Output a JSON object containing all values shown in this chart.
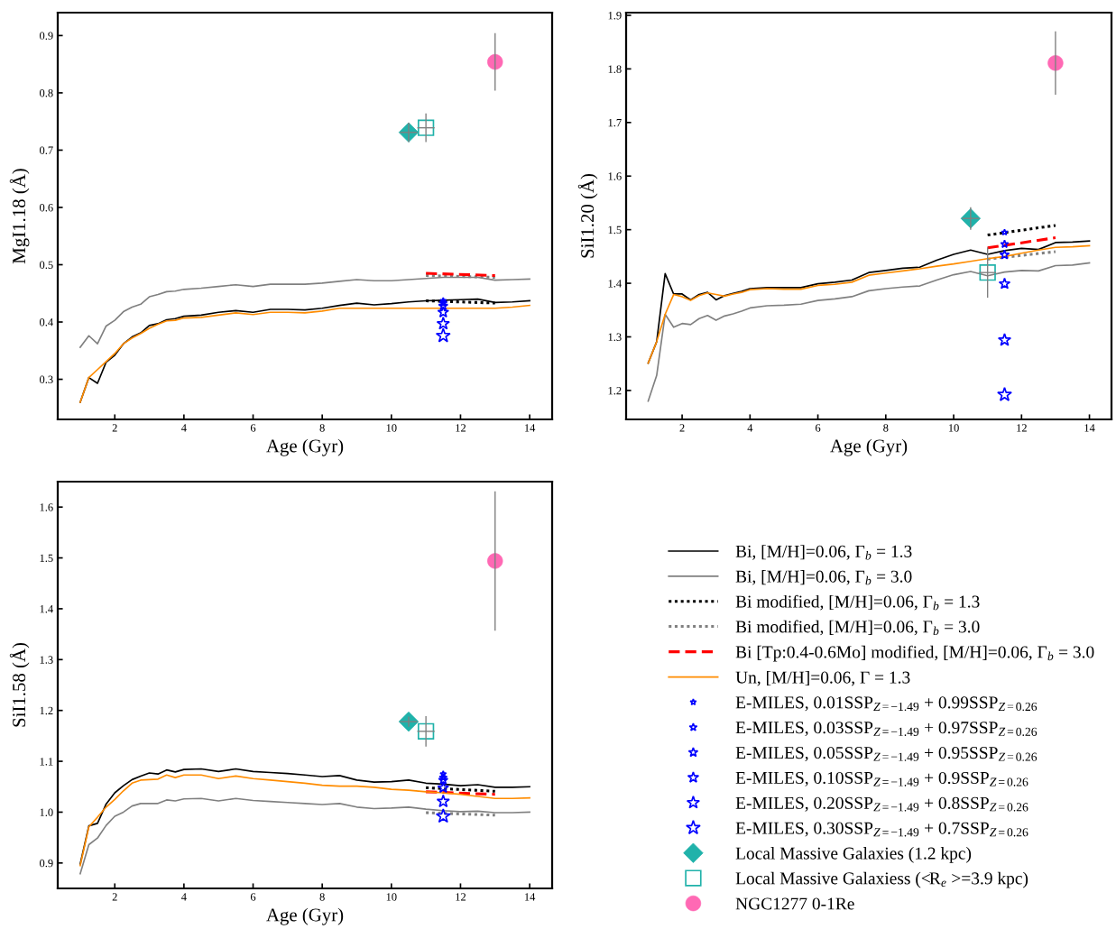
{
  "chart_data": [
    {
      "type": "line",
      "xlabel": "Age (Gyr)",
      "ylabel": "MgI1.18 (Å)",
      "xlim": [
        0.35,
        14.65
      ],
      "ylim": [
        0.23,
        0.94
      ],
      "xticks": [
        2,
        4,
        6,
        8,
        10,
        12,
        14
      ],
      "yticks": [
        0.3,
        0.4,
        0.5,
        0.6,
        0.7,
        0.8,
        0.9
      ],
      "legend": "bottom right",
      "x": [
        1,
        1.25,
        1.5,
        1.75,
        2,
        2.25,
        2.5,
        2.75,
        3,
        3.25,
        3.5,
        3.75,
        4,
        4.5,
        5,
        5.5,
        6,
        6.5,
        7,
        7.5,
        8,
        8.5,
        9,
        9.5,
        10,
        10.5,
        11,
        11.5,
        12,
        12.5,
        13,
        13.5,
        14
      ],
      "series": [
        {
          "name": "Bi, [M/H]=0.06, Γ$_{b}$ = 1.3",
          "color": "#000000",
          "line_style": "solid",
          "values": [
            0.26,
            0.303,
            0.293,
            0.33,
            0.342,
            0.362,
            0.374,
            0.381,
            0.394,
            0.397,
            0.404,
            0.406,
            0.41,
            0.412,
            0.417,
            0.42,
            0.417,
            0.422,
            0.422,
            0.421,
            0.424,
            0.429,
            0.433,
            0.43,
            0.432,
            0.435,
            0.437,
            0.438,
            0.439,
            0.44,
            0.434,
            0.435,
            0.437
          ]
        },
        {
          "name": "Bi, [M/H]=0.06, Γ$_{b}$ = 3.0",
          "color": "#808080",
          "line_style": "solid",
          "values": [
            0.356,
            0.376,
            0.362,
            0.393,
            0.403,
            0.418,
            0.426,
            0.431,
            0.444,
            0.448,
            0.453,
            0.454,
            0.457,
            0.459,
            0.462,
            0.465,
            0.462,
            0.466,
            0.466,
            0.466,
            0.468,
            0.471,
            0.474,
            0.472,
            0.472,
            0.474,
            0.476,
            0.478,
            0.478,
            0.478,
            0.473,
            0.474,
            0.475
          ]
        },
        {
          "name": "Bi modified, [M/H]=0.06, Γ$_{b}$ = 1.3",
          "color": "#000000",
          "line_style": "dotted",
          "x": [
            11,
            13
          ],
          "values": [
            0.437,
            0.433
          ]
        },
        {
          "name": "Bi modified, [M/H]=0.06, Γ$_{b}$ = 3.0",
          "color": "#808080",
          "line_style": "dotted",
          "x": [
            11,
            13
          ],
          "values": [
            0.481,
            0.478
          ]
        },
        {
          "name": "Bi [Tp:0.4-0.6Mo] modified, [M/H]=0.06, Γ$_{b}$ = 3.0",
          "color": "#ff0000",
          "line_style": "dashed",
          "x": [
            11,
            13
          ],
          "values": [
            0.485,
            0.481
          ]
        },
        {
          "name": "Un, [M/H]=0.06, Γ = 1.3",
          "color": "#ff8c00",
          "line_style": "solid",
          "values": [
            0.26,
            0.303,
            0.317,
            0.331,
            0.345,
            0.362,
            0.372,
            0.38,
            0.389,
            0.396,
            0.402,
            0.403,
            0.407,
            0.408,
            0.412,
            0.416,
            0.413,
            0.417,
            0.417,
            0.416,
            0.419,
            0.424,
            0.424,
            0.424,
            0.424,
            0.424,
            0.424,
            0.424,
            0.424,
            0.424,
            0.424,
            0.426,
            0.429
          ]
        },
        {
          "name": "E-MILES, 0.01SSP$_{Z=−1.49}$ + 0.99SSP$_{Z=0.26}$",
          "type": "scatter",
          "marker": "star",
          "color": "#0000ff",
          "x": [
            11.5
          ],
          "values": [
            0.437
          ]
        },
        {
          "name": "E-MILES, 0.03SSP$_{Z=−1.49}$ + 0.97SSP$_{Z=0.26}$",
          "type": "scatter",
          "marker": "star",
          "color": "#0000ff",
          "x": [
            11.5
          ],
          "values": [
            0.433
          ]
        },
        {
          "name": "E-MILES, 0.05SSP$_{Z=−1.49}$ + 0.95SSP$_{Z=0.26}$",
          "type": "scatter",
          "marker": "star",
          "color": "#0000ff",
          "x": [
            11.5
          ],
          "values": [
            0.428
          ]
        },
        {
          "name": "E-MILES, 0.10SSP$_{Z=−1.49}$ + 0.9SSP$_{Z=0.26}$",
          "type": "scatter",
          "marker": "star",
          "color": "#0000ff",
          "x": [
            11.5
          ],
          "values": [
            0.417
          ]
        },
        {
          "name": "E-MILES, 0.20SSP$_{Z=−1.49}$ + 0.8SSP$_{Z=0.26}$",
          "type": "scatter",
          "marker": "star",
          "color": "#0000ff",
          "x": [
            11.5
          ],
          "values": [
            0.397
          ]
        },
        {
          "name": "E-MILES, 0.30SSP$_{Z=−1.49}$ + 0.7SSP$_{Z=0.26}$",
          "type": "scatter",
          "marker": "star",
          "color": "#0000ff",
          "x": [
            11.5
          ],
          "values": [
            0.376
          ]
        },
        {
          "name": "Local Massive Galaxies (1.2 kpc)",
          "type": "scatter",
          "marker": "diamond",
          "color": "#20b2aa",
          "x": [
            10.5
          ],
          "values": [
            0.731
          ],
          "errors": [
            0.017
          ],
          "xerrors": [
            0.25
          ]
        },
        {
          "name": "Local Massive Galaxiess (<R$_{e}$ >=3.9 kpc)",
          "type": "scatter",
          "marker": "square",
          "color": "#20b2aa",
          "x": [
            11
          ],
          "values": [
            0.739
          ],
          "errors": [
            0.025
          ],
          "xerrors": [
            0.25
          ]
        },
        {
          "name": "NGC1277 0-1Re",
          "type": "scatter",
          "marker": "circle",
          "color": "#ff69b4",
          "x": [
            13
          ],
          "values": [
            0.854
          ],
          "errors": [
            0.05
          ]
        }
      ]
    },
    {
      "type": "line",
      "xlabel": "Age (Gyr)",
      "ylabel": "SiI1.20 (Å)",
      "xlim": [
        0.35,
        14.65
      ],
      "ylim": [
        1.146,
        1.905
      ],
      "xticks": [
        2,
        4,
        6,
        8,
        10,
        12,
        14
      ],
      "yticks": [
        1.2,
        1.3,
        1.4,
        1.5,
        1.6,
        1.7,
        1.8,
        1.9
      ],
      "x": [
        1,
        1.25,
        1.5,
        1.75,
        2,
        2.25,
        2.5,
        2.75,
        3,
        3.25,
        3.5,
        3.75,
        4,
        4.5,
        5,
        5.5,
        6,
        6.5,
        7,
        7.5,
        8,
        8.5,
        9,
        9.5,
        10,
        10.5,
        11,
        11.5,
        12,
        12.5,
        13,
        13.5,
        14
      ],
      "series": [
        {
          "color": "#000000",
          "line_style": "solid",
          "values": [
            1.251,
            1.291,
            1.418,
            1.38,
            1.38,
            1.369,
            1.379,
            1.383,
            1.369,
            1.377,
            1.381,
            1.385,
            1.39,
            1.392,
            1.392,
            1.392,
            1.399,
            1.402,
            1.406,
            1.42,
            1.424,
            1.428,
            1.43,
            1.443,
            1.454,
            1.462,
            1.454,
            1.461,
            1.465,
            1.463,
            1.476,
            1.477,
            1.479
          ]
        },
        {
          "color": "#808080",
          "line_style": "solid",
          "values": [
            1.18,
            1.228,
            1.342,
            1.318,
            1.325,
            1.323,
            1.334,
            1.34,
            1.331,
            1.339,
            1.343,
            1.348,
            1.354,
            1.358,
            1.359,
            1.361,
            1.368,
            1.371,
            1.375,
            1.386,
            1.39,
            1.393,
            1.395,
            1.406,
            1.416,
            1.422,
            1.414,
            1.421,
            1.424,
            1.423,
            1.433,
            1.434,
            1.438
          ]
        },
        {
          "color": "#000000",
          "line_style": "dotted",
          "x": [
            11,
            13
          ],
          "values": [
            1.49,
            1.508
          ]
        },
        {
          "color": "#808080",
          "line_style": "dotted",
          "x": [
            11,
            13
          ],
          "values": [
            1.445,
            1.459
          ]
        },
        {
          "color": "#ff0000",
          "line_style": "dashed",
          "x": [
            11,
            13
          ],
          "values": [
            1.466,
            1.485
          ]
        },
        {
          "color": "#ff8c00",
          "line_style": "solid",
          "values": [
            1.251,
            1.291,
            1.342,
            1.379,
            1.375,
            1.368,
            1.377,
            1.382,
            1.379,
            1.376,
            1.38,
            1.383,
            1.388,
            1.39,
            1.389,
            1.389,
            1.396,
            1.398,
            1.402,
            1.415,
            1.419,
            1.423,
            1.427,
            1.432,
            1.436,
            1.441,
            1.446,
            1.45,
            1.456,
            1.462,
            1.467,
            1.468,
            1.47
          ]
        },
        {
          "type": "scatter",
          "marker": "star",
          "color": "#0000ff",
          "x": [
            11.5
          ],
          "values": [
            1.495
          ]
        },
        {
          "type": "scatter",
          "marker": "star",
          "color": "#0000ff",
          "x": [
            11.5
          ],
          "values": [
            1.473
          ]
        },
        {
          "type": "scatter",
          "marker": "star",
          "color": "#0000ff",
          "x": [
            11.5
          ],
          "values": [
            1.453
          ]
        },
        {
          "type": "scatter",
          "marker": "star",
          "color": "#0000ff",
          "x": [
            11.5
          ],
          "values": [
            1.399
          ]
        },
        {
          "type": "scatter",
          "marker": "star",
          "color": "#0000ff",
          "x": [
            11.5
          ],
          "values": [
            1.294
          ]
        },
        {
          "type": "scatter",
          "marker": "star",
          "color": "#0000ff",
          "x": [
            11.5
          ],
          "values": [
            1.192
          ]
        },
        {
          "type": "scatter",
          "marker": "diamond",
          "color": "#20b2aa",
          "x": [
            10.5
          ],
          "values": [
            1.521
          ],
          "errors": [
            0.021
          ],
          "xerrors": [
            0.25
          ]
        },
        {
          "type": "scatter",
          "marker": "square",
          "color": "#20b2aa",
          "x": [
            11
          ],
          "values": [
            1.42
          ],
          "errors": [
            0.047
          ],
          "xerrors": [
            0.25
          ]
        },
        {
          "type": "scatter",
          "marker": "circle",
          "color": "#ff69b4",
          "x": [
            13
          ],
          "values": [
            1.811
          ],
          "errors": [
            0.059
          ]
        }
      ]
    },
    {
      "type": "line",
      "xlabel": "Age (Gyr)",
      "ylabel": "SiI1.58 (Å)",
      "xlim": [
        0.35,
        14.65
      ],
      "ylim": [
        0.85,
        1.65
      ],
      "xticks": [
        2,
        4,
        6,
        8,
        10,
        12,
        14
      ],
      "yticks": [
        0.9,
        {
          "value": 1.0,
          "label": "1.0"
        },
        1.1,
        1.2,
        1.3,
        1.4,
        1.5,
        1.6
      ],
      "x": [
        1,
        1.25,
        1.5,
        1.75,
        2,
        2.25,
        2.5,
        2.75,
        3,
        3.25,
        3.5,
        3.75,
        4,
        4.5,
        5,
        5.5,
        6,
        6.5,
        7,
        7.5,
        8,
        8.5,
        9,
        9.5,
        10,
        10.5,
        11,
        11.5,
        12,
        12.5,
        13,
        13.5,
        14
      ],
      "series": [
        {
          "color": "#000000",
          "line_style": "solid",
          "values": [
            0.898,
            0.973,
            0.978,
            1.016,
            1.038,
            1.052,
            1.064,
            1.071,
            1.077,
            1.075,
            1.083,
            1.079,
            1.084,
            1.085,
            1.08,
            1.085,
            1.08,
            1.078,
            1.076,
            1.073,
            1.07,
            1.072,
            1.063,
            1.059,
            1.06,
            1.063,
            1.057,
            1.055,
            1.052,
            1.054,
            1.049,
            1.049,
            1.05
          ]
        },
        {
          "color": "#808080",
          "line_style": "solid",
          "values": [
            0.879,
            0.936,
            0.949,
            0.974,
            0.992,
            1.0,
            1.012,
            1.017,
            1.017,
            1.017,
            1.024,
            1.022,
            1.026,
            1.027,
            1.022,
            1.027,
            1.023,
            1.021,
            1.019,
            1.017,
            1.015,
            1.017,
            1.01,
            1.007,
            1.008,
            1.01,
            1.006,
            1.003,
            1.001,
            1.002,
            0.999,
            0.999,
            1.0
          ]
        },
        {
          "color": "#000000",
          "line_style": "dotted",
          "x": [
            11,
            13
          ],
          "values": [
            1.048,
            1.041
          ]
        },
        {
          "color": "#808080",
          "line_style": "dotted",
          "x": [
            11,
            13
          ],
          "values": [
            0.999,
            0.994
          ]
        },
        {
          "color": "#ff0000",
          "line_style": "dashed",
          "x": [
            11,
            13
          ],
          "values": [
            1.04,
            1.035
          ]
        },
        {
          "color": "#ff8c00",
          "line_style": "solid",
          "values": [
            0.895,
            0.971,
            0.99,
            1.01,
            1.025,
            1.042,
            1.057,
            1.063,
            1.064,
            1.065,
            1.073,
            1.068,
            1.073,
            1.073,
            1.066,
            1.071,
            1.066,
            1.063,
            1.06,
            1.057,
            1.053,
            1.051,
            1.051,
            1.049,
            1.045,
            1.043,
            1.04,
            1.038,
            1.035,
            1.031,
            1.027,
            1.027,
            1.028
          ]
        },
        {
          "type": "scatter",
          "marker": "star",
          "color": "#0000ff",
          "x": [
            11.5
          ],
          "values": [
            1.075
          ]
        },
        {
          "type": "scatter",
          "marker": "star",
          "color": "#0000ff",
          "x": [
            11.5
          ],
          "values": [
            1.068
          ]
        },
        {
          "type": "scatter",
          "marker": "star",
          "color": "#0000ff",
          "x": [
            11.5
          ],
          "values": [
            1.063
          ]
        },
        {
          "type": "scatter",
          "marker": "star",
          "color": "#0000ff",
          "x": [
            11.5
          ],
          "values": [
            1.048
          ]
        },
        {
          "type": "scatter",
          "marker": "star",
          "color": "#0000ff",
          "x": [
            11.5
          ],
          "values": [
            1.021
          ]
        },
        {
          "type": "scatter",
          "marker": "star",
          "color": "#0000ff",
          "x": [
            11.5
          ],
          "values": [
            0.992
          ]
        },
        {
          "type": "scatter",
          "marker": "diamond",
          "color": "#20b2aa",
          "x": [
            10.5
          ],
          "values": [
            1.178
          ],
          "errors": [
            0.01
          ],
          "xerrors": [
            0.25
          ]
        },
        {
          "type": "scatter",
          "marker": "square",
          "color": "#20b2aa",
          "x": [
            11
          ],
          "values": [
            1.159
          ],
          "errors": [
            0.03
          ],
          "xerrors": [
            0.25
          ]
        },
        {
          "type": "scatter",
          "marker": "circle",
          "color": "#ff69b4",
          "x": [
            13
          ],
          "values": [
            1.494
          ],
          "errors": [
            0.137
          ]
        }
      ]
    }
  ]
}
